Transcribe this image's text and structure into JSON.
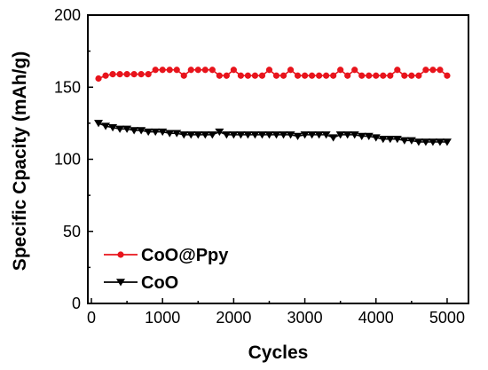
{
  "chart_data": {
    "type": "line",
    "xlabel": "Cycles",
    "ylabel": "Specific Cpacity (mAh/g)",
    "xlim": [
      -50,
      5300
    ],
    "ylim": [
      0,
      200
    ],
    "xticks": [
      0,
      1000,
      2000,
      3000,
      4000,
      5000
    ],
    "yticks": [
      0,
      50,
      100,
      150,
      200
    ],
    "grid": false,
    "legend_position": "lower-left",
    "x": [
      100,
      200,
      300,
      400,
      500,
      600,
      700,
      800,
      900,
      1000,
      1100,
      1200,
      1300,
      1400,
      1500,
      1600,
      1700,
      1800,
      1900,
      2000,
      2100,
      2200,
      2300,
      2400,
      2500,
      2600,
      2700,
      2800,
      2900,
      3000,
      3100,
      3200,
      3300,
      3400,
      3500,
      3600,
      3700,
      3800,
      3900,
      4000,
      4100,
      4200,
      4300,
      4400,
      4500,
      4600,
      4700,
      4800,
      4900,
      5000
    ],
    "series": [
      {
        "name": "CoO@Ppy",
        "color": "#e8141c",
        "marker": "circle",
        "values": [
          156,
          158,
          159,
          159,
          159,
          159,
          159,
          159,
          162,
          162,
          162,
          162,
          158,
          162,
          162,
          162,
          162,
          158,
          158,
          162,
          158,
          158,
          158,
          158,
          162,
          158,
          158,
          162,
          158,
          158,
          158,
          158,
          158,
          158,
          162,
          158,
          162,
          158,
          158,
          158,
          158,
          158,
          162,
          158,
          158,
          158,
          162,
          162,
          162,
          158
        ]
      },
      {
        "name": "CoO",
        "color": "#000000",
        "marker": "triangle-down",
        "values": [
          125,
          123,
          122,
          121,
          121,
          120,
          120,
          119,
          119,
          119,
          118,
          118,
          117,
          117,
          117,
          117,
          117,
          119,
          117,
          117,
          117,
          117,
          117,
          117,
          117,
          117,
          117,
          117,
          116,
          117,
          117,
          117,
          117,
          115,
          117,
          117,
          117,
          116,
          116,
          115,
          114,
          114,
          114,
          113,
          113,
          112,
          112,
          112,
          112,
          112
        ]
      }
    ]
  }
}
